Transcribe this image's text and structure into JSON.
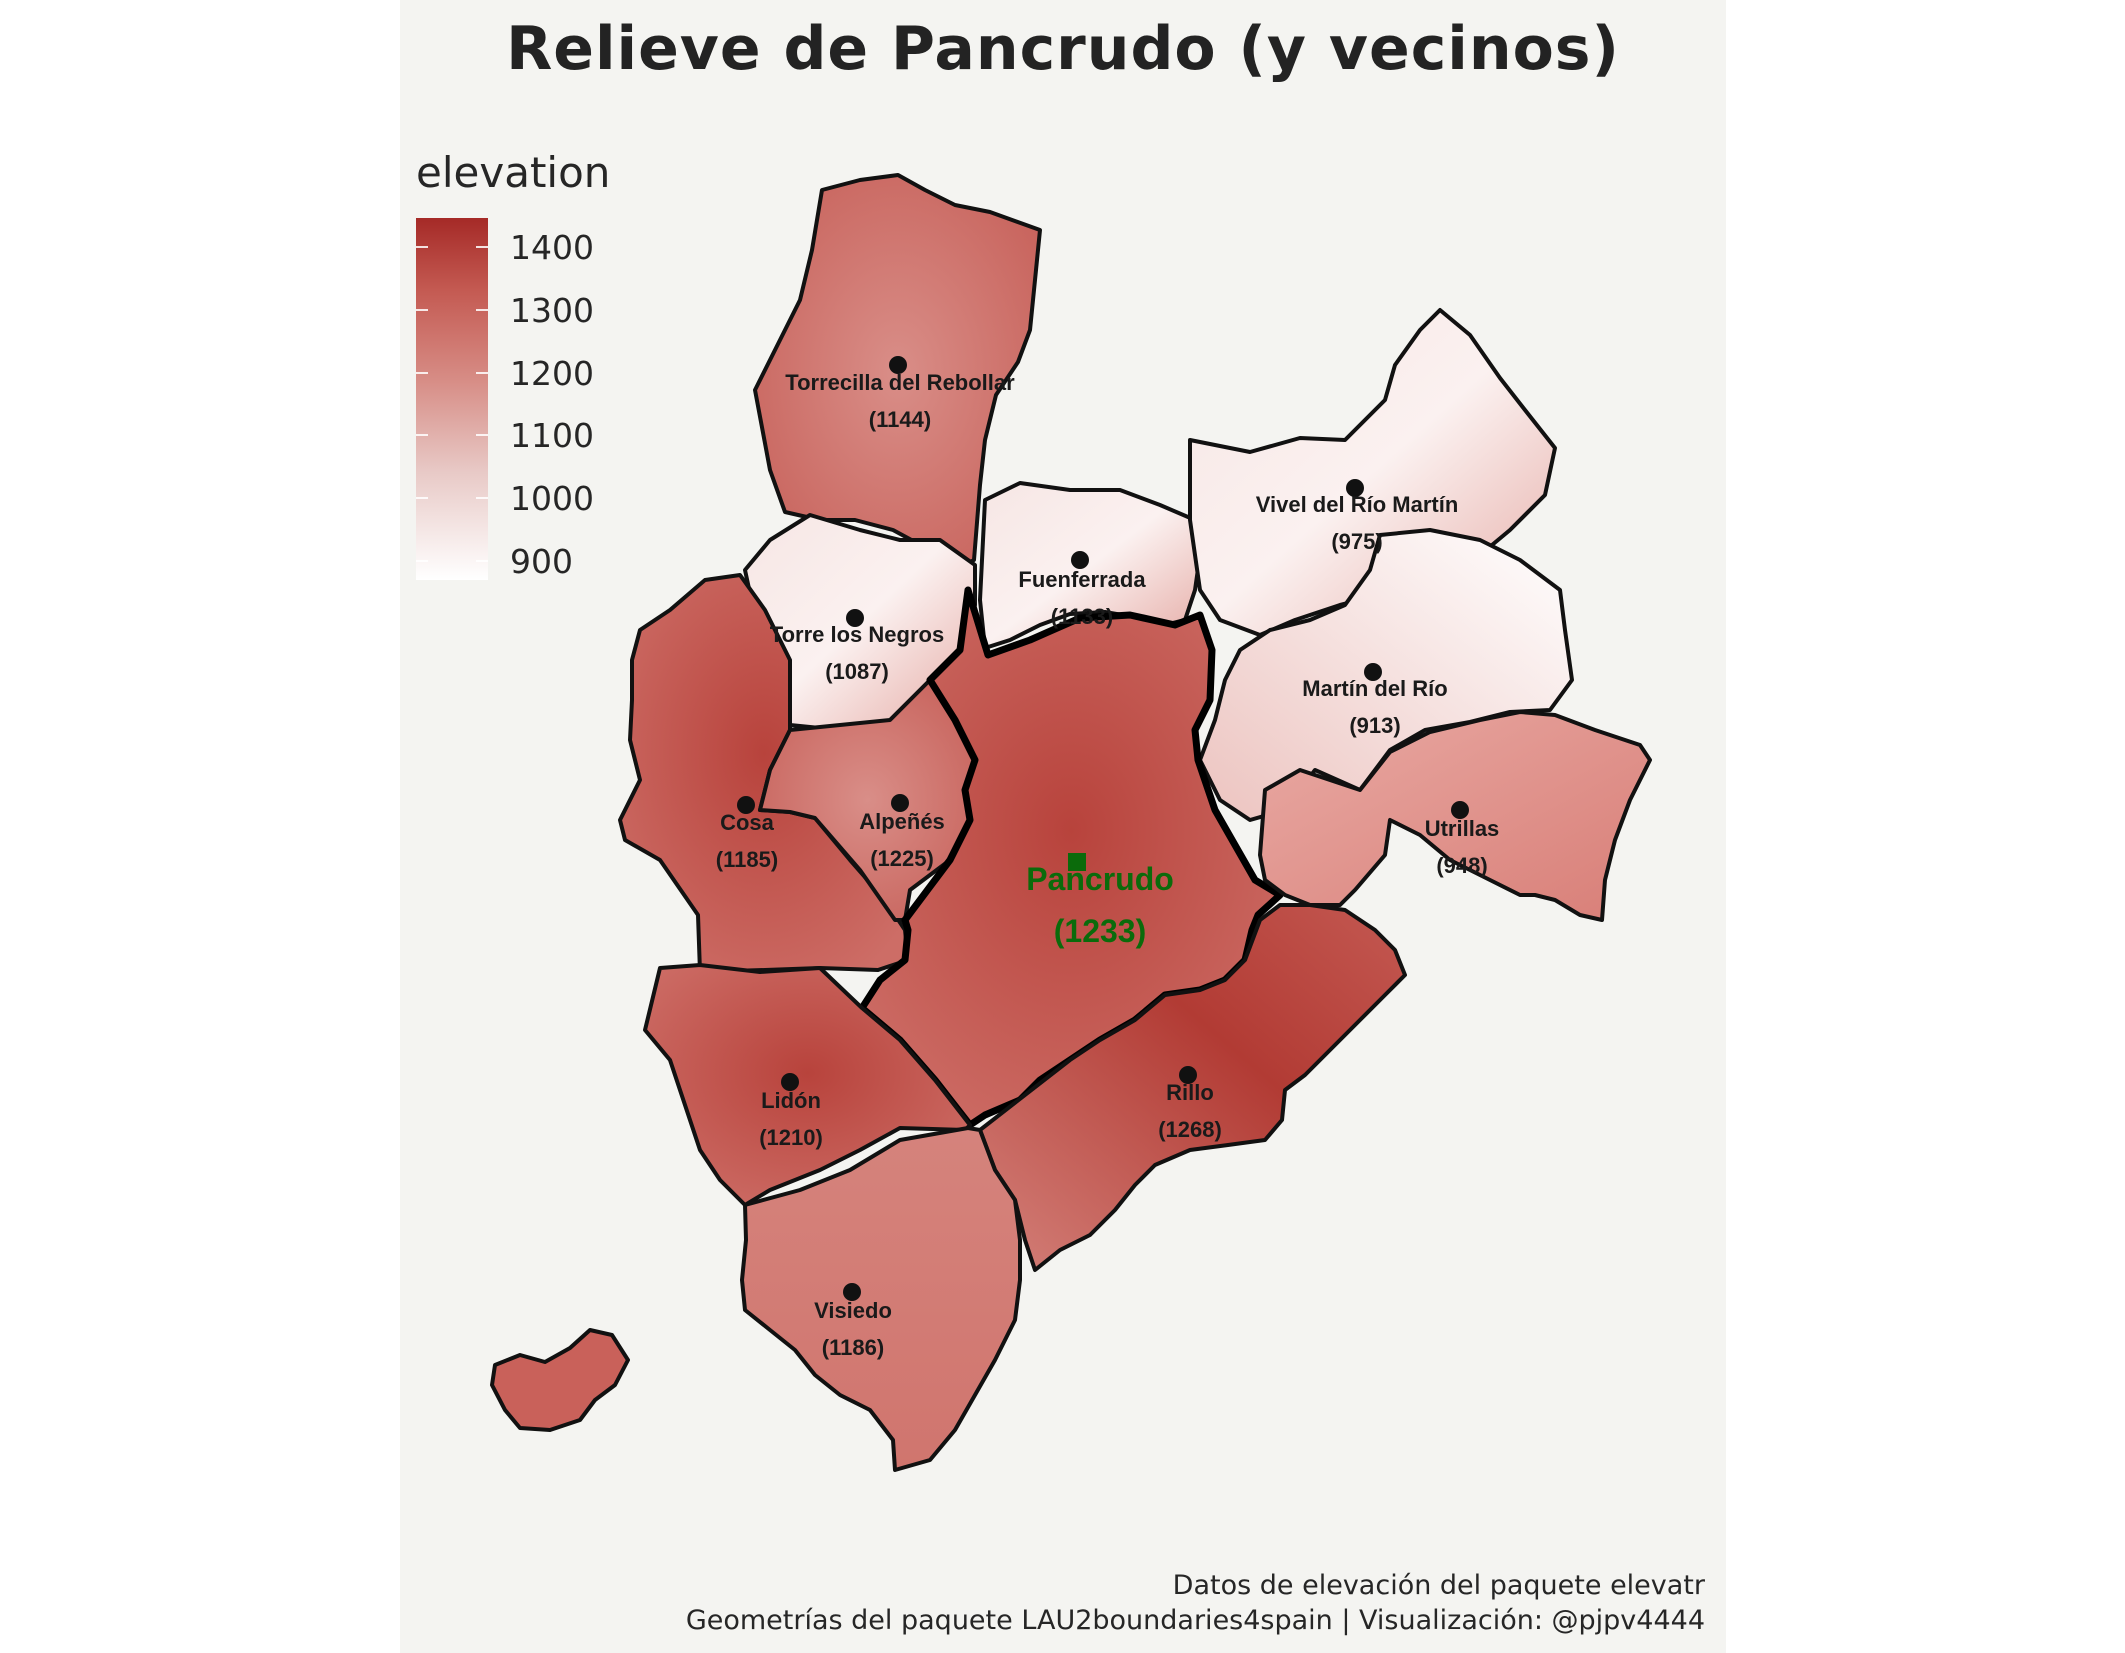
{
  "title": "Relieve de Pancrudo (y vecinos)",
  "legend": {
    "title": "elevation",
    "ticks": [
      "1400",
      "1300",
      "1200",
      "1100",
      "1000",
      "900"
    ],
    "colors": {
      "low": "#ffffff",
      "mid": "#d78d86",
      "high": "#a52a27"
    }
  },
  "main_municipality": {
    "name": "Pancrudo",
    "elevation": "(1233)",
    "color": "#0b6b0b"
  },
  "municipalities": [
    {
      "name": "Torrecilla del Rebollar",
      "elevation": "(1144)"
    },
    {
      "name": "Fuenferrada",
      "elevation": "(1133)"
    },
    {
      "name": "Vivel del Río Martín",
      "elevation": "(975)"
    },
    {
      "name": "Torre los Negros",
      "elevation": "(1087)"
    },
    {
      "name": "Martín del Río",
      "elevation": "(913)"
    },
    {
      "name": "Cosa",
      "elevation": "(1185)"
    },
    {
      "name": "Alpeñés",
      "elevation": "(1225)"
    },
    {
      "name": "Utrillas",
      "elevation": "(948)"
    },
    {
      "name": "Lidón",
      "elevation": "(1210)"
    },
    {
      "name": "Rillo",
      "elevation": "(1268)"
    },
    {
      "name": "Visiedo",
      "elevation": "(1186)"
    }
  ],
  "caption": {
    "line1": "Datos de elevación del paquete elevatr",
    "line2": "Geometrías del paquete LAU2boundaries4spain | Visualización: @pjpv4444"
  }
}
